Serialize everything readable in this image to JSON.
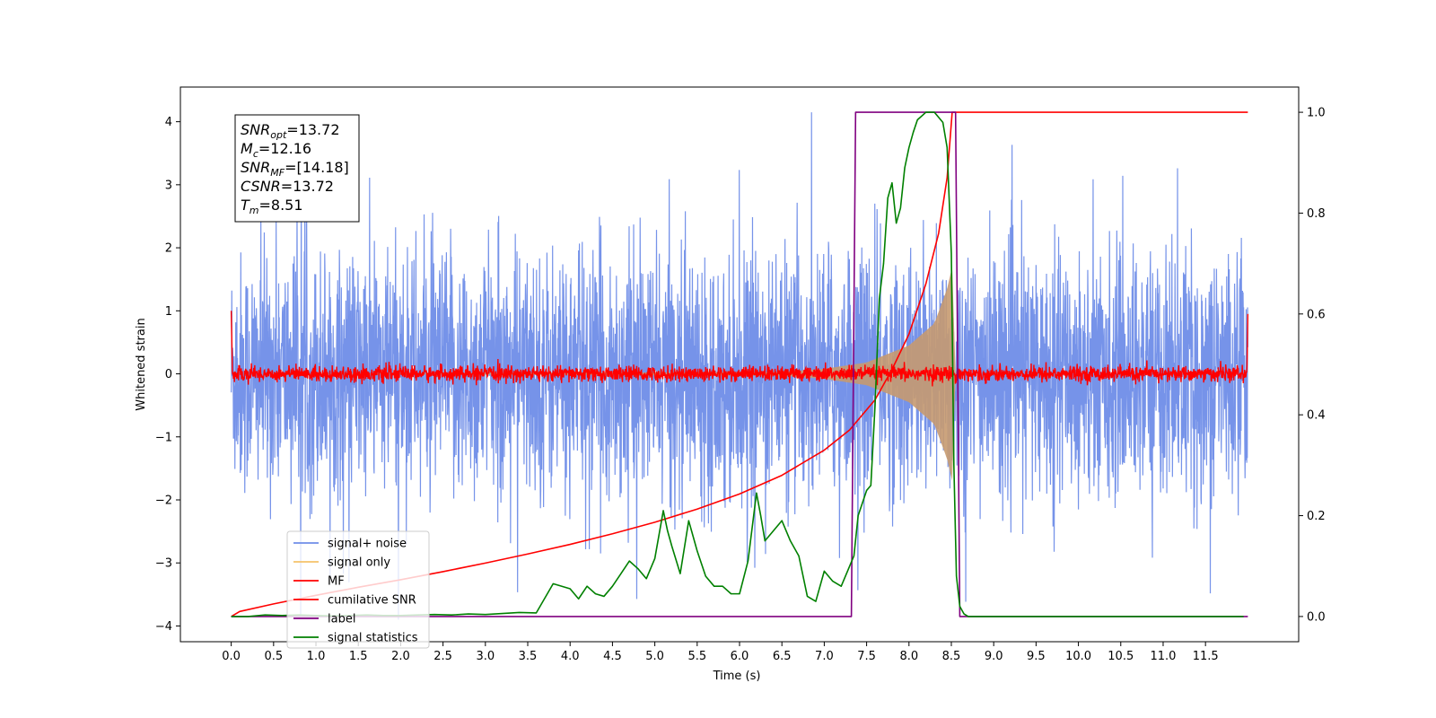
{
  "chart_data": {
    "type": "line",
    "xlabel": "Time (s)",
    "ylabel": "Whitened strain",
    "xlim": [
      -0.6,
      12.6
    ],
    "ylim_left": [
      -4.25,
      4.55
    ],
    "ylim_right": [
      -0.05,
      1.05
    ],
    "x_ticks": [
      "0.0",
      "0.5",
      "1.0",
      "1.5",
      "2.0",
      "2.5",
      "3.0",
      "3.5",
      "4.0",
      "4.5",
      "5.0",
      "5.5",
      "6.0",
      "6.5",
      "7.0",
      "7.5",
      "8.0",
      "8.5",
      "9.0",
      "9.5",
      "10.0",
      "10.5",
      "11.0",
      "11.5"
    ],
    "y_ticks_left": [
      "4",
      "3",
      "2",
      "1",
      "0",
      "−1",
      "−2",
      "−3",
      "−4"
    ],
    "y_ticks_right": [
      "1.0",
      "0.8",
      "0.6",
      "0.4",
      "0.2",
      "0.0"
    ],
    "grid": false,
    "legend_placement": "lower-left",
    "series": [
      {
        "name": "signal+ noise",
        "color": "#6f8de8",
        "axis": "left",
        "render": "noise",
        "x_range": [
          0.0,
          12.0
        ],
        "approx_amplitude": 2.2
      },
      {
        "name": "signal only",
        "color": "#f4c26a",
        "axis": "left",
        "render": "chirp",
        "x_range": [
          0.0,
          8.51
        ],
        "envelope": {
          "x": [
            0.0,
            6.5,
            7.0,
            7.5,
            8.0,
            8.3,
            8.45,
            8.51
          ],
          "y": [
            0.0,
            0.03,
            0.08,
            0.18,
            0.45,
            0.8,
            1.35,
            1.7
          ]
        }
      },
      {
        "name": "MF",
        "color": "#ff0000",
        "axis": "left",
        "render": "mf",
        "x_range": [
          0.0,
          12.0
        ],
        "approx_noise": 0.06,
        "start_value": 1.0,
        "end_value": 0.95
      },
      {
        "name": "cumilative SNR",
        "color": "#ff0000",
        "axis": "right",
        "x": [
          0.0,
          0.1,
          0.5,
          1.0,
          1.5,
          2.0,
          2.5,
          3.0,
          3.5,
          4.0,
          4.5,
          5.0,
          5.5,
          6.0,
          6.5,
          7.0,
          7.3,
          7.6,
          7.8,
          8.0,
          8.2,
          8.35,
          8.45,
          8.51,
          12.0
        ],
        "y": [
          0.0,
          0.01,
          0.025,
          0.042,
          0.058,
          0.073,
          0.089,
          0.106,
          0.124,
          0.143,
          0.164,
          0.187,
          0.213,
          0.243,
          0.28,
          0.33,
          0.37,
          0.43,
          0.49,
          0.56,
          0.66,
          0.76,
          0.87,
          1.0,
          1.0
        ]
      },
      {
        "name": "label",
        "color": "#800080",
        "axis": "right",
        "x": [
          0.0,
          7.32,
          7.37,
          8.55,
          8.6,
          12.0
        ],
        "y": [
          0.0,
          0.0,
          1.0,
          1.0,
          0.0,
          0.0
        ]
      },
      {
        "name": "signal statistics",
        "color": "#008000",
        "axis": "right",
        "x": [
          0.0,
          0.2,
          0.4,
          0.6,
          0.8,
          1.0,
          1.2,
          1.4,
          1.6,
          1.8,
          2.0,
          2.2,
          2.4,
          2.6,
          2.8,
          3.0,
          3.2,
          3.4,
          3.6,
          3.8,
          4.0,
          4.1,
          4.2,
          4.3,
          4.4,
          4.5,
          4.6,
          4.7,
          4.8,
          4.9,
          5.0,
          5.1,
          5.15,
          5.2,
          5.3,
          5.4,
          5.45,
          5.5,
          5.6,
          5.7,
          5.8,
          5.9,
          6.0,
          6.1,
          6.2,
          6.25,
          6.3,
          6.4,
          6.5,
          6.6,
          6.7,
          6.8,
          6.9,
          7.0,
          7.1,
          7.2,
          7.3,
          7.35,
          7.4,
          7.5,
          7.55,
          7.6,
          7.65,
          7.7,
          7.75,
          7.8,
          7.85,
          7.9,
          7.95,
          8.0,
          8.05,
          8.1,
          8.2,
          8.3,
          8.4,
          8.45,
          8.5,
          8.53,
          8.56,
          8.6,
          8.65,
          8.7,
          8.8,
          9.0,
          9.5,
          10.0,
          10.5,
          11.0,
          11.5,
          11.95
        ],
        "y": [
          0.0,
          0.0,
          0.003,
          0.002,
          0.003,
          0.002,
          0.001,
          0.002,
          0.003,
          0.002,
          0.002,
          0.003,
          0.004,
          0.003,
          0.005,
          0.004,
          0.006,
          0.008,
          0.007,
          0.065,
          0.055,
          0.035,
          0.06,
          0.045,
          0.04,
          0.06,
          0.085,
          0.11,
          0.095,
          0.075,
          0.115,
          0.21,
          0.17,
          0.14,
          0.085,
          0.19,
          0.16,
          0.13,
          0.08,
          0.06,
          0.06,
          0.045,
          0.045,
          0.11,
          0.245,
          0.2,
          0.15,
          0.17,
          0.19,
          0.15,
          0.12,
          0.04,
          0.03,
          0.09,
          0.07,
          0.06,
          0.1,
          0.12,
          0.2,
          0.25,
          0.26,
          0.42,
          0.63,
          0.7,
          0.83,
          0.86,
          0.78,
          0.81,
          0.89,
          0.93,
          0.96,
          0.985,
          1.0,
          1.0,
          0.98,
          0.93,
          0.72,
          0.3,
          0.08,
          0.02,
          0.005,
          0.0,
          0.0,
          0.0,
          0.0,
          0.0,
          0.0,
          0.0,
          0.0,
          0.0
        ]
      }
    ],
    "annotation_box": {
      "lines": [
        {
          "sym": "SNR",
          "sub": "opt",
          "val": "=13.72"
        },
        {
          "sym": "M",
          "sub": "c",
          "val": "=12.16"
        },
        {
          "sym": "SNR",
          "sub": "MF",
          "val": "=[14.18]"
        },
        {
          "sym": "CSNR",
          "sub": "",
          "val": "=13.72"
        },
        {
          "sym": "T",
          "sub": "m",
          "val": "=8.51"
        }
      ]
    }
  }
}
